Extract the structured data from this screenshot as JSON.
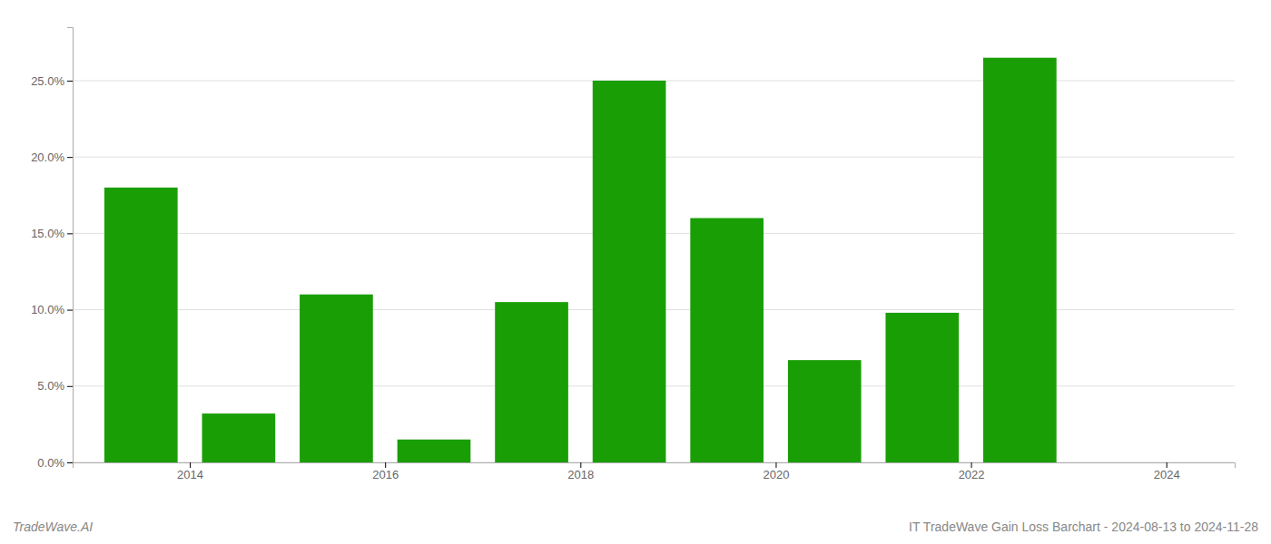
{
  "chart_data": {
    "type": "bar",
    "title": "IT TradeWave Gain Loss Barchart - 2024-08-13 to 2024-11-28",
    "annotations": [
      "TradeWave.AI"
    ],
    "x": [
      2014,
      2015,
      2016,
      2017,
      2018,
      2019,
      2020,
      2021,
      2022,
      2023,
      2024
    ],
    "values": [
      0.18,
      0.032,
      0.11,
      0.015,
      0.105,
      0.25,
      0.16,
      0.067,
      0.098,
      0.265,
      null
    ],
    "color": "#1a9e06",
    "xlim": [
      2013.3,
      2025.2
    ],
    "xticks": [
      {
        "value": 2014.5,
        "label": "2014"
      },
      {
        "value": 2016.5,
        "label": "2016"
      },
      {
        "value": 2018.5,
        "label": "2018"
      },
      {
        "value": 2020.5,
        "label": "2020"
      },
      {
        "value": 2022.5,
        "label": "2022"
      },
      {
        "value": 2024.5,
        "label": "2024"
      }
    ],
    "ylim": [
      0,
      0.285
    ],
    "yticks": [
      {
        "value": 0.0,
        "label": "0.0%"
      },
      {
        "value": 0.05,
        "label": "5.0%"
      },
      {
        "value": 0.1,
        "label": "10.0%"
      },
      {
        "value": 0.15,
        "label": "15.0%"
      },
      {
        "value": 0.2,
        "label": "20.0%"
      },
      {
        "value": 0.25,
        "label": "25.0%"
      }
    ],
    "grid": true
  }
}
